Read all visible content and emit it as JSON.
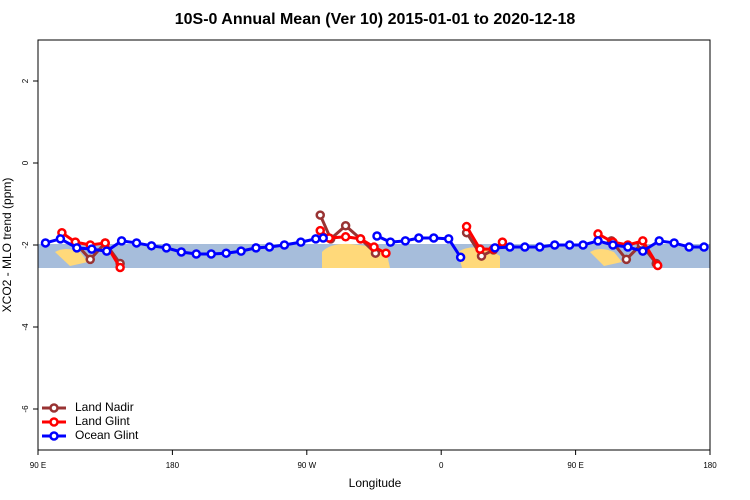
{
  "chart_data": {
    "type": "line",
    "title": "10S-0 Annual Mean (Ver 10)   2015-01-01 to 2020-12-18",
    "xlabel": "Longitude",
    "ylabel": "XCO2 - MLO trend (ppm)",
    "xlim": [
      90,
      540
    ],
    "xticks": [
      {
        "value": 90,
        "label": "90 E"
      },
      180,
      {
        "value": 270,
        "label": "90 W"
      },
      {
        "value": 360,
        "label": "0"
      },
      {
        "value": 450,
        "label": "90 E"
      },
      {
        "value": 540,
        "label": "180"
      }
    ],
    "ylim": [
      -7,
      3
    ],
    "yticks": [
      -6,
      -4,
      -2,
      0,
      2
    ],
    "legend": "bottomleft",
    "series": [
      {
        "name": "Land Nadir",
        "color": "#993333",
        "x": [
          115,
          125,
          135,
          145,
          200,
          279,
          286,
          296,
          306,
          316,
          350,
          377,
          387,
          395,
          440,
          474,
          484,
          494,
          504
        ],
        "values": [
          -1.95,
          -2.35,
          -1.95,
          -2.45,
          null,
          -1.27,
          -1.85,
          -1.53,
          -1.85,
          -2.2,
          null,
          -1.7,
          -2.27,
          -2.12,
          null,
          -1.9,
          -2.35,
          -1.98,
          -2.45
        ]
      },
      {
        "name": "Land Glint",
        "color": "#ff0000",
        "x": [
          106,
          115,
          125,
          135,
          145,
          200,
          279,
          285,
          296,
          306,
          315,
          323,
          350,
          377,
          386,
          395,
          401,
          440,
          465,
          475,
          485,
          495,
          505
        ],
        "values": [
          -1.7,
          -1.93,
          -2.0,
          -1.95,
          -2.55,
          null,
          -1.65,
          -1.83,
          -1.8,
          -1.85,
          -2.05,
          -2.2,
          null,
          -1.55,
          -2.1,
          -2.1,
          -1.93,
          null,
          -1.73,
          -1.93,
          -2.0,
          -1.9,
          -2.5
        ]
      },
      {
        "name": "Ocean Glint",
        "color": "#0000ff",
        "x": [
          95,
          105,
          116,
          126,
          136,
          146,
          156,
          166,
          176,
          186,
          196,
          206,
          216,
          226,
          236,
          245,
          255,
          266,
          276,
          281,
          300,
          317,
          326,
          336,
          345,
          355,
          365,
          373,
          385,
          396,
          406,
          416,
          426,
          436,
          446,
          455,
          465,
          475,
          485,
          495,
          506,
          516,
          526,
          536
        ],
        "values": [
          -1.95,
          -1.85,
          -2.07,
          -2.1,
          -2.15,
          -1.9,
          -1.95,
          -2.02,
          -2.07,
          -2.17,
          -2.22,
          -2.22,
          -2.2,
          -2.15,
          -2.07,
          -2.05,
          -2.0,
          -1.93,
          -1.85,
          -1.83,
          null,
          -1.78,
          -1.93,
          -1.9,
          -1.83,
          -1.83,
          -1.85,
          -2.3,
          null,
          -2.07,
          -2.05,
          -2.05,
          -2.05,
          -2.0,
          -2.0,
          -2.0,
          -1.9,
          -2.0,
          -2.05,
          -2.15,
          -1.9,
          -1.95,
          -2.05,
          -2.05
        ]
      }
    ]
  }
}
